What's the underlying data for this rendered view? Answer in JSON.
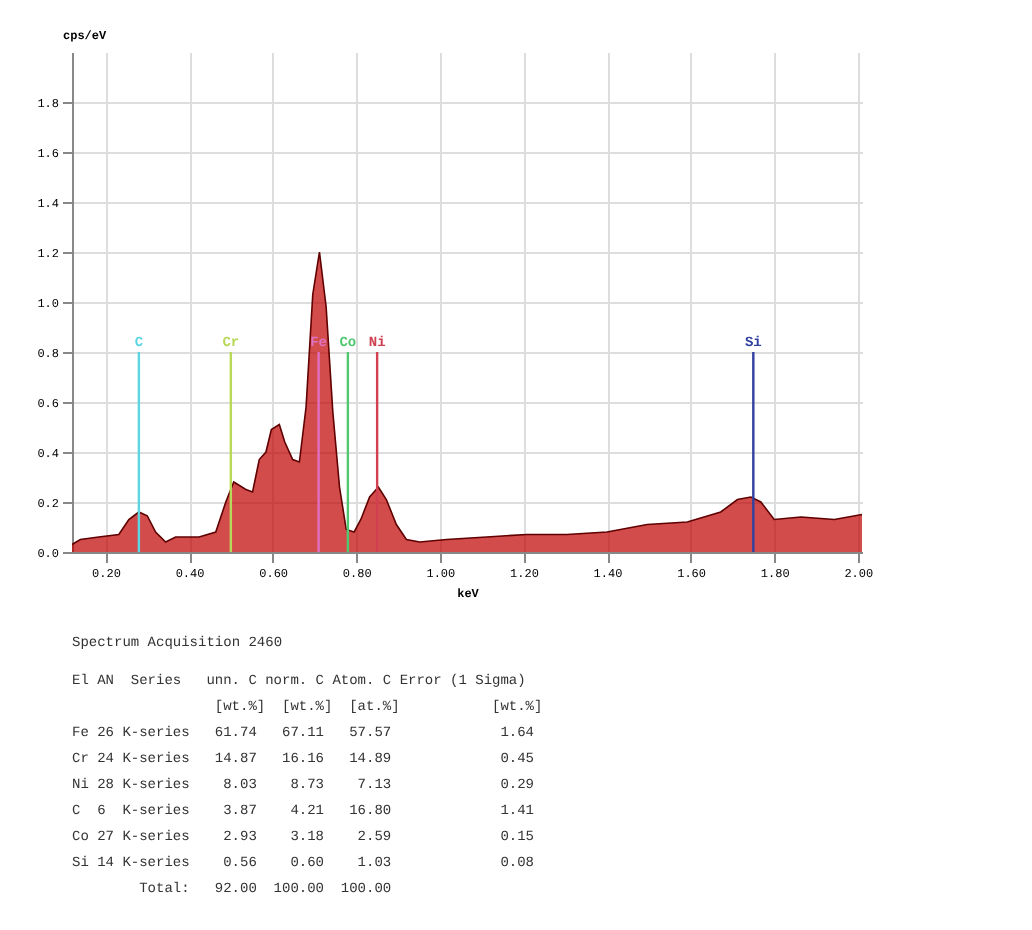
{
  "chart_data": {
    "type": "area",
    "xlabel": "keV",
    "ylabel": "cps/eV",
    "x": [
      0.12,
      0.14,
      0.184,
      0.232,
      0.256,
      0.28,
      0.3,
      0.32,
      0.344,
      0.368,
      0.424,
      0.464,
      0.488,
      0.507,
      0.536,
      0.552,
      0.568,
      0.584,
      0.597,
      0.616,
      0.629,
      0.648,
      0.664,
      0.68,
      0.696,
      0.712,
      0.728,
      0.744,
      0.76,
      0.776,
      0.795,
      0.811,
      0.832,
      0.853,
      0.872,
      0.896,
      0.92,
      0.952,
      1.016,
      1.112,
      1.208,
      1.304,
      1.4,
      1.496,
      1.592,
      1.672,
      1.712,
      1.744,
      1.768,
      1.8,
      1.864,
      1.944,
      2.01
    ],
    "series": [
      {
        "color": "#c00000",
        "values": [
          0.03,
          0.05,
          0.06,
          0.07,
          0.13,
          0.16,
          0.145,
          0.08,
          0.04,
          0.06,
          0.06,
          0.08,
          0.2,
          0.28,
          0.25,
          0.24,
          0.37,
          0.4,
          0.49,
          0.51,
          0.44,
          0.37,
          0.36,
          0.58,
          1.03,
          1.2,
          0.98,
          0.56,
          0.26,
          0.09,
          0.08,
          0.13,
          0.22,
          0.26,
          0.21,
          0.11,
          0.05,
          0.04,
          0.05,
          0.06,
          0.07,
          0.07,
          0.08,
          0.11,
          0.12,
          0.16,
          0.21,
          0.22,
          0.2,
          0.13,
          0.14,
          0.13,
          0.15
        ]
      }
    ],
    "xlim": [
      0.12,
      2.01
    ],
    "xticks": [
      {
        "value": 0.2,
        "label": "0.20"
      },
      {
        "value": 0.4,
        "label": "0.40"
      },
      {
        "value": 0.6,
        "label": "0.60"
      },
      {
        "value": 0.8,
        "label": "0.80"
      },
      {
        "value": 1.0,
        "label": "1.00"
      },
      {
        "value": 1.2,
        "label": "1.20"
      },
      {
        "value": 1.4,
        "label": "1.40"
      },
      {
        "value": 1.6,
        "label": "1.60"
      },
      {
        "value": 1.8,
        "label": "1.80"
      },
      {
        "value": 2.0,
        "label": "2.00"
      }
    ],
    "ylim": [
      0,
      2.0
    ],
    "yticks": [
      {
        "value": 0,
        "label": "0.0"
      },
      0.2,
      0.4,
      0.6,
      0.8,
      {
        "value": 1.0,
        "label": "1.0"
      },
      1.2,
      1.4,
      1.6,
      1.8
    ],
    "grid": true,
    "ref_lines": [
      {
        "axis": "x",
        "value": 0.28,
        "label": "C",
        "color": "#5bd6e0"
      },
      {
        "axis": "x",
        "value": 0.5,
        "label": "Cr",
        "color": "#b8d85a"
      },
      {
        "axis": "x",
        "value": 0.71,
        "label": "Fe",
        "color": "#e070c0"
      },
      {
        "axis": "x",
        "value": 0.78,
        "label": "Co",
        "color": "#50c870"
      },
      {
        "axis": "x",
        "value": 0.85,
        "label": "Ni",
        "color": "#d04050"
      },
      {
        "axis": "x",
        "value": 1.75,
        "label": "Si",
        "color": "#3040a0"
      }
    ],
    "annotations": [
      "Spectrum Acquisition 2460",
      "El AN  Series   unn. C norm. C Atom. C Error (1 Sigma)",
      "                 [wt.%]  [wt.%]  [at.%]           [wt.%]",
      "Fe 26 K-series   61.74   67.11   57.57             1.64",
      "Cr 24 K-series   14.87   16.16   14.89             0.45",
      "Ni 28 K-series    8.03    8.73    7.13             0.29",
      "C  6  K-series    3.87    4.21   16.80             1.41",
      "Co 27 K-series    2.93    3.18    2.59             0.15",
      "Si 14 K-series    0.56    0.60    1.03             0.08",
      "        Total:   92.00  100.00  100.00"
    ]
  }
}
